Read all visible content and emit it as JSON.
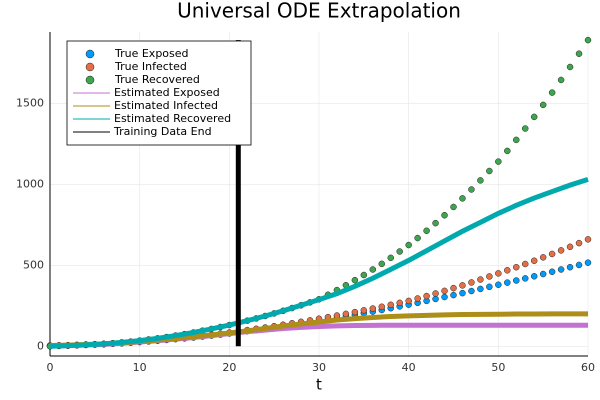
{
  "chart_data": {
    "type": "line",
    "title": "Universal ODE Extrapolation",
    "x_label": "t",
    "xlim": [
      0,
      60
    ],
    "xticks": [
      0,
      10,
      20,
      30,
      40,
      50,
      60
    ],
    "ylim": [
      -60,
      1940
    ],
    "yticks": [
      0,
      500,
      1000,
      1500
    ],
    "grid": true,
    "legend": "top-left",
    "series": [
      {
        "name": "True Exposed",
        "type": "scatter",
        "color": "#009afa",
        "x": [
          0,
          1,
          2,
          3,
          4,
          5,
          6,
          7,
          8,
          9,
          10,
          11,
          12,
          13,
          14,
          15,
          16,
          17,
          18,
          19,
          20,
          21,
          22,
          23,
          24,
          25,
          26,
          27,
          28,
          29,
          30,
          31,
          32,
          33,
          34,
          35,
          36,
          37,
          38,
          39,
          40,
          41,
          42,
          43,
          44,
          45,
          46,
          47,
          48,
          49,
          50,
          51,
          52,
          53,
          54,
          55,
          56,
          57,
          58,
          59,
          60
        ],
        "values": [
          2,
          3,
          4,
          6,
          8,
          10,
          12,
          15,
          18,
          22,
          26,
          30,
          34,
          39,
          44,
          49,
          54,
          60,
          66,
          72,
          79,
          86,
          93,
          100,
          108,
          116,
          124,
          132,
          140,
          148,
          157,
          166,
          175,
          184,
          194,
          204,
          214,
          224,
          235,
          246,
          257,
          268,
          280,
          292,
          304,
          316,
          328,
          341,
          354,
          367,
          380,
          393,
          406,
          419,
          432,
          446,
          460,
          474,
          488,
          502,
          516
        ]
      },
      {
        "name": "True Infected",
        "type": "scatter",
        "color": "#e36f47",
        "x": [
          0,
          1,
          2,
          3,
          4,
          5,
          6,
          7,
          8,
          9,
          10,
          11,
          12,
          13,
          14,
          15,
          16,
          17,
          18,
          19,
          20,
          21,
          22,
          23,
          24,
          25,
          26,
          27,
          28,
          29,
          30,
          31,
          32,
          33,
          34,
          35,
          36,
          37,
          38,
          39,
          40,
          41,
          42,
          43,
          44,
          45,
          46,
          47,
          48,
          49,
          50,
          51,
          52,
          53,
          54,
          55,
          56,
          57,
          58,
          59,
          60
        ],
        "values": [
          5,
          6,
          7,
          9,
          11,
          13,
          15,
          18,
          21,
          25,
          29,
          33,
          38,
          43,
          48,
          53,
          59,
          65,
          71,
          78,
          85,
          92,
          100,
          108,
          116,
          124,
          133,
          142,
          151,
          160,
          170,
          180,
          190,
          200,
          211,
          222,
          233,
          244,
          256,
          268,
          280,
          295,
          310,
          326,
          342,
          359,
          376,
          394,
          412,
          431,
          450,
          469,
          488,
          508,
          528,
          549,
          570,
          592,
          614,
          637,
          660
        ]
      },
      {
        "name": "True Recovered",
        "type": "scatter",
        "color": "#3ea44e",
        "x": [
          0,
          1,
          2,
          3,
          4,
          5,
          6,
          7,
          8,
          9,
          10,
          11,
          12,
          13,
          14,
          15,
          16,
          17,
          18,
          19,
          20,
          21,
          22,
          23,
          24,
          25,
          26,
          27,
          28,
          29,
          30,
          31,
          32,
          33,
          34,
          35,
          36,
          37,
          38,
          39,
          40,
          41,
          42,
          43,
          44,
          45,
          46,
          47,
          48,
          49,
          50,
          51,
          52,
          53,
          54,
          55,
          56,
          57,
          58,
          59,
          60
        ],
        "values": [
          0,
          2,
          4,
          6,
          9,
          12,
          15,
          19,
          24,
          29,
          35,
          42,
          49,
          57,
          66,
          75,
          85,
          96,
          107,
          119,
          131,
          144,
          158,
          172,
          187,
          203,
          219,
          236,
          253,
          271,
          290,
          318,
          347,
          377,
          408,
          440,
          474,
          509,
          546,
          585,
          625,
          668,
          713,
          760,
          809,
          860,
          913,
          968,
          1024,
          1082,
          1140,
          1206,
          1274,
          1344,
          1416,
          1490,
          1566,
          1644,
          1724,
          1806,
          1890
        ]
      },
      {
        "name": "Estimated Exposed",
        "type": "line",
        "color": "#c371d2",
        "x": [
          0,
          2,
          4,
          6,
          8,
          10,
          12,
          14,
          16,
          18,
          20,
          22,
          24,
          26,
          28,
          30,
          32,
          34,
          36,
          38,
          40,
          42,
          44,
          46,
          48,
          50,
          52,
          54,
          56,
          58,
          60
        ],
        "values": [
          2,
          4,
          8,
          12,
          18,
          26,
          34,
          44,
          54,
          66,
          78,
          90,
          100,
          110,
          117,
          122,
          126,
          128,
          129,
          130,
          130,
          130,
          130,
          130,
          130,
          130,
          130,
          130,
          130,
          130,
          130
        ]
      },
      {
        "name": "Estimated Infected",
        "type": "line",
        "color": "#ac8e18",
        "x": [
          0,
          2,
          4,
          6,
          8,
          10,
          12,
          14,
          16,
          18,
          20,
          22,
          24,
          26,
          28,
          30,
          32,
          34,
          36,
          38,
          40,
          42,
          44,
          46,
          48,
          50,
          52,
          54,
          56,
          58,
          60
        ],
        "values": [
          5,
          7,
          11,
          15,
          21,
          29,
          38,
          48,
          59,
          70,
          82,
          95,
          110,
          125,
          138,
          150,
          162,
          171,
          178,
          184,
          188,
          191,
          194,
          196,
          197,
          198,
          199,
          199,
          200,
          200,
          200
        ]
      },
      {
        "name": "Estimated Recovered",
        "type": "line",
        "color": "#00a9ad",
        "x": [
          0,
          2,
          4,
          6,
          8,
          10,
          12,
          14,
          16,
          18,
          20,
          22,
          24,
          26,
          28,
          30,
          32,
          34,
          36,
          38,
          40,
          42,
          44,
          46,
          48,
          50,
          52,
          54,
          56,
          58,
          60
        ],
        "values": [
          0,
          4,
          9,
          15,
          24,
          35,
          49,
          66,
          85,
          107,
          131,
          158,
          187,
          219,
          253,
          288,
          325,
          370,
          420,
          475,
          530,
          590,
          650,
          710,
          765,
          820,
          870,
          915,
          955,
          995,
          1030
        ]
      },
      {
        "name": "Training Data End",
        "type": "line",
        "color": "#000000",
        "x": [
          21,
          21
        ],
        "values": [
          0,
          1890
        ]
      }
    ]
  }
}
